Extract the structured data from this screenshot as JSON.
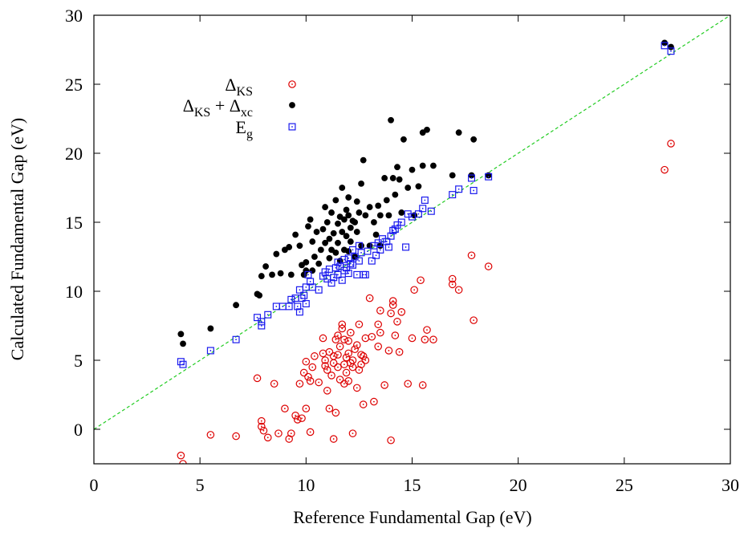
{
  "chart_data": {
    "type": "scatter",
    "title": "",
    "xlabel": "Reference Fundamental Gap (eV)",
    "ylabel": "Calculated Fundamental Gap (eV)",
    "xlim": [
      0,
      30
    ],
    "ylim": [
      -2.5,
      30
    ],
    "xticks": [
      0,
      5,
      10,
      15,
      20,
      25,
      30
    ],
    "yticks": [
      0,
      5,
      10,
      15,
      20,
      25,
      30
    ],
    "grid": false,
    "legend_position": "top-left",
    "reference_line": {
      "x": [
        0,
        30
      ],
      "y": [
        0,
        30
      ],
      "style": "dashed",
      "color": "#22cc22"
    },
    "series": [
      {
        "name": "Δ_KS",
        "legend_main": "Δ",
        "legend_sub": "KS",
        "marker": "open-circle-dot",
        "color": "#dd0000",
        "points": [
          [
            4.1,
            -1.9
          ],
          [
            4.2,
            -2.5
          ],
          [
            5.5,
            -0.4
          ],
          [
            6.7,
            -0.5
          ],
          [
            7.7,
            3.7
          ],
          [
            7.9,
            0.6
          ],
          [
            7.9,
            0.2
          ],
          [
            8.0,
            -0.1
          ],
          [
            8.2,
            -0.6
          ],
          [
            8.5,
            3.3
          ],
          [
            8.7,
            -0.3
          ],
          [
            9.0,
            1.5
          ],
          [
            9.2,
            -0.7
          ],
          [
            9.3,
            -0.3
          ],
          [
            9.5,
            1.0
          ],
          [
            9.6,
            0.7
          ],
          [
            9.7,
            3.3
          ],
          [
            9.8,
            0.8
          ],
          [
            9.9,
            4.1
          ],
          [
            10.0,
            4.9
          ],
          [
            10.0,
            1.5
          ],
          [
            10.1,
            3.8
          ],
          [
            10.2,
            -0.2
          ],
          [
            10.2,
            3.5
          ],
          [
            10.3,
            4.5
          ],
          [
            10.4,
            5.3
          ],
          [
            10.6,
            3.4
          ],
          [
            10.8,
            6.6
          ],
          [
            10.8,
            5.5
          ],
          [
            10.9,
            5.0
          ],
          [
            10.9,
            4.6
          ],
          [
            11.0,
            2.8
          ],
          [
            11.0,
            4.3
          ],
          [
            11.1,
            5.6
          ],
          [
            11.1,
            1.5
          ],
          [
            11.2,
            3.9
          ],
          [
            11.3,
            -0.7
          ],
          [
            11.3,
            4.8
          ],
          [
            11.3,
            5.3
          ],
          [
            11.4,
            6.5
          ],
          [
            11.4,
            1.2
          ],
          [
            11.5,
            4.5
          ],
          [
            11.5,
            6.8
          ],
          [
            11.5,
            5.4
          ],
          [
            11.6,
            6.0
          ],
          [
            11.6,
            3.6
          ],
          [
            11.7,
            7.6
          ],
          [
            11.7,
            7.3
          ],
          [
            11.8,
            4.7
          ],
          [
            11.8,
            3.3
          ],
          [
            11.8,
            6.5
          ],
          [
            11.9,
            4.1
          ],
          [
            11.9,
            5.2
          ],
          [
            12.0,
            3.5
          ],
          [
            12.0,
            5.5
          ],
          [
            12.0,
            6.4
          ],
          [
            12.1,
            4.8
          ],
          [
            12.1,
            7.0
          ],
          [
            12.2,
            5.0
          ],
          [
            12.2,
            4.5
          ],
          [
            12.2,
            -0.3
          ],
          [
            12.3,
            5.8
          ],
          [
            12.4,
            6.1
          ],
          [
            12.4,
            3.0
          ],
          [
            12.5,
            7.6
          ],
          [
            12.5,
            4.3
          ],
          [
            12.6,
            5.4
          ],
          [
            12.6,
            4.7
          ],
          [
            12.7,
            1.8
          ],
          [
            12.7,
            5.3
          ],
          [
            12.8,
            6.6
          ],
          [
            12.8,
            5.0
          ],
          [
            13.0,
            9.5
          ],
          [
            13.1,
            6.7
          ],
          [
            13.2,
            2.0
          ],
          [
            13.4,
            7.6
          ],
          [
            13.4,
            6.0
          ],
          [
            13.5,
            7.0
          ],
          [
            13.5,
            8.6
          ],
          [
            13.7,
            3.2
          ],
          [
            13.9,
            5.7
          ],
          [
            14.0,
            8.4
          ],
          [
            14.0,
            -0.8
          ],
          [
            14.1,
            9.0
          ],
          [
            14.1,
            9.3
          ],
          [
            14.2,
            6.8
          ],
          [
            14.3,
            7.8
          ],
          [
            14.4,
            5.6
          ],
          [
            14.5,
            8.5
          ],
          [
            14.8,
            3.3
          ],
          [
            15.0,
            6.6
          ],
          [
            15.1,
            10.1
          ],
          [
            15.4,
            10.8
          ],
          [
            15.5,
            3.2
          ],
          [
            15.6,
            6.5
          ],
          [
            15.7,
            7.2
          ],
          [
            16.0,
            6.5
          ],
          [
            16.9,
            10.9
          ],
          [
            16.9,
            10.5
          ],
          [
            17.2,
            10.1
          ],
          [
            17.8,
            12.6
          ],
          [
            17.9,
            7.9
          ],
          [
            18.6,
            11.8
          ],
          [
            26.9,
            18.8
          ],
          [
            27.2,
            20.7
          ]
        ]
      },
      {
        "name": "Δ_KS + Δ_xc",
        "legend_main": "Δ",
        "legend_sub": "KS",
        "legend_plus": " + Δ",
        "legend_sub2": "xc",
        "marker": "filled-circle",
        "color": "#000000",
        "points": [
          [
            4.1,
            6.9
          ],
          [
            4.2,
            6.2
          ],
          [
            5.5,
            7.3
          ],
          [
            6.7,
            9.0
          ],
          [
            7.7,
            9.8
          ],
          [
            7.8,
            9.7
          ],
          [
            7.9,
            11.1
          ],
          [
            8.1,
            11.8
          ],
          [
            8.4,
            11.2
          ],
          [
            8.6,
            12.7
          ],
          [
            8.8,
            11.3
          ],
          [
            9.0,
            13.0
          ],
          [
            9.2,
            13.2
          ],
          [
            9.3,
            11.2
          ],
          [
            9.5,
            14.1
          ],
          [
            9.7,
            13.3
          ],
          [
            9.8,
            11.9
          ],
          [
            9.9,
            11.2
          ],
          [
            10.0,
            11.5
          ],
          [
            10.0,
            12.1
          ],
          [
            10.1,
            14.7
          ],
          [
            10.2,
            15.2
          ],
          [
            10.3,
            13.6
          ],
          [
            10.3,
            11.5
          ],
          [
            10.4,
            12.5
          ],
          [
            10.5,
            14.3
          ],
          [
            10.6,
            12.0
          ],
          [
            10.7,
            13.0
          ],
          [
            10.8,
            14.5
          ],
          [
            10.9,
            13.5
          ],
          [
            10.9,
            16.1
          ],
          [
            11.0,
            15.0
          ],
          [
            11.1,
            12.4
          ],
          [
            11.1,
            13.8
          ],
          [
            11.2,
            15.7
          ],
          [
            11.2,
            13.0
          ],
          [
            11.3,
            14.2
          ],
          [
            11.4,
            12.8
          ],
          [
            11.4,
            16.6
          ],
          [
            11.5,
            13.5
          ],
          [
            11.5,
            14.9
          ],
          [
            11.6,
            15.4
          ],
          [
            11.6,
            12.2
          ],
          [
            11.7,
            17.5
          ],
          [
            11.7,
            14.3
          ],
          [
            11.8,
            15.2
          ],
          [
            11.8,
            13.0
          ],
          [
            11.9,
            14.0
          ],
          [
            11.9,
            15.9
          ],
          [
            12.0,
            15.5
          ],
          [
            12.0,
            12.9
          ],
          [
            12.0,
            16.8
          ],
          [
            12.1,
            14.6
          ],
          [
            12.1,
            13.6
          ],
          [
            12.2,
            15.1
          ],
          [
            12.3,
            15.0
          ],
          [
            12.3,
            12.5
          ],
          [
            12.4,
            14.3
          ],
          [
            12.4,
            16.5
          ],
          [
            12.5,
            15.7
          ],
          [
            12.6,
            13.3
          ],
          [
            12.6,
            17.8
          ],
          [
            12.7,
            19.5
          ],
          [
            12.8,
            15.5
          ],
          [
            13.0,
            13.3
          ],
          [
            13.0,
            16.1
          ],
          [
            13.2,
            15.0
          ],
          [
            13.3,
            14.1
          ],
          [
            13.4,
            16.2
          ],
          [
            13.5,
            15.5
          ],
          [
            13.5,
            13.3
          ],
          [
            13.7,
            18.2
          ],
          [
            13.8,
            16.6
          ],
          [
            13.9,
            15.5
          ],
          [
            14.0,
            22.4
          ],
          [
            14.1,
            18.2
          ],
          [
            14.2,
            17.0
          ],
          [
            14.3,
            19.0
          ],
          [
            14.4,
            18.1
          ],
          [
            14.5,
            15.7
          ],
          [
            14.6,
            21.0
          ],
          [
            14.8,
            17.5
          ],
          [
            15.0,
            18.8
          ],
          [
            15.1,
            15.5
          ],
          [
            15.3,
            17.6
          ],
          [
            15.5,
            19.1
          ],
          [
            15.5,
            21.5
          ],
          [
            15.7,
            21.7
          ],
          [
            16.0,
            19.1
          ],
          [
            16.9,
            18.4
          ],
          [
            17.2,
            21.5
          ],
          [
            17.8,
            18.4
          ],
          [
            17.9,
            21.0
          ],
          [
            18.6,
            18.4
          ],
          [
            26.9,
            28.0
          ],
          [
            27.2,
            27.7
          ]
        ]
      },
      {
        "name": "E_g",
        "legend_main": "E",
        "legend_sub": "g",
        "marker": "open-square-dot",
        "color": "#1a1aee",
        "points": [
          [
            4.1,
            4.9
          ],
          [
            4.2,
            4.7
          ],
          [
            5.5,
            5.7
          ],
          [
            6.7,
            6.5
          ],
          [
            7.7,
            8.1
          ],
          [
            7.9,
            7.5
          ],
          [
            7.9,
            7.8
          ],
          [
            8.2,
            8.3
          ],
          [
            8.6,
            8.9
          ],
          [
            8.9,
            8.9
          ],
          [
            9.2,
            8.9
          ],
          [
            9.3,
            9.4
          ],
          [
            9.5,
            9.5
          ],
          [
            9.6,
            8.9
          ],
          [
            9.7,
            8.5
          ],
          [
            9.7,
            10.1
          ],
          [
            9.8,
            9.5
          ],
          [
            9.9,
            9.7
          ],
          [
            10.0,
            10.3
          ],
          [
            10.0,
            9.1
          ],
          [
            10.1,
            11.2
          ],
          [
            10.2,
            10.7
          ],
          [
            10.3,
            10.3
          ],
          [
            10.6,
            10.1
          ],
          [
            10.8,
            11.1
          ],
          [
            10.9,
            11.4
          ],
          [
            11.0,
            10.9
          ],
          [
            11.1,
            11.6
          ],
          [
            11.2,
            10.6
          ],
          [
            11.3,
            11.0
          ],
          [
            11.4,
            11.7
          ],
          [
            11.5,
            12.1
          ],
          [
            11.5,
            11.2
          ],
          [
            11.6,
            11.8
          ],
          [
            11.7,
            10.8
          ],
          [
            11.8,
            12.3
          ],
          [
            11.8,
            11.5
          ],
          [
            11.9,
            11.7
          ],
          [
            12.0,
            12.4
          ],
          [
            12.0,
            11.3
          ],
          [
            12.1,
            12.0
          ],
          [
            12.2,
            13.0
          ],
          [
            12.2,
            11.9
          ],
          [
            12.3,
            12.5
          ],
          [
            12.4,
            11.2
          ],
          [
            12.5,
            12.2
          ],
          [
            12.5,
            13.3
          ],
          [
            12.6,
            12.8
          ],
          [
            12.7,
            11.2
          ],
          [
            12.8,
            11.2
          ],
          [
            12.9,
            12.9
          ],
          [
            13.1,
            12.2
          ],
          [
            13.2,
            13.3
          ],
          [
            13.3,
            12.6
          ],
          [
            13.4,
            13.5
          ],
          [
            13.5,
            13.0
          ],
          [
            13.6,
            13.8
          ],
          [
            13.8,
            13.6
          ],
          [
            13.9,
            13.2
          ],
          [
            14.0,
            14.0
          ],
          [
            14.1,
            14.4
          ],
          [
            14.2,
            14.5
          ],
          [
            14.3,
            14.8
          ],
          [
            14.5,
            15.0
          ],
          [
            14.7,
            13.2
          ],
          [
            14.8,
            15.6
          ],
          [
            15.0,
            15.4
          ],
          [
            15.3,
            15.6
          ],
          [
            15.5,
            16.0
          ],
          [
            15.6,
            16.6
          ],
          [
            15.9,
            15.8
          ],
          [
            16.9,
            17.0
          ],
          [
            17.2,
            17.4
          ],
          [
            17.8,
            18.2
          ],
          [
            17.9,
            17.3
          ],
          [
            18.6,
            18.3
          ],
          [
            26.9,
            27.8
          ],
          [
            27.2,
            27.4
          ]
        ]
      }
    ]
  }
}
